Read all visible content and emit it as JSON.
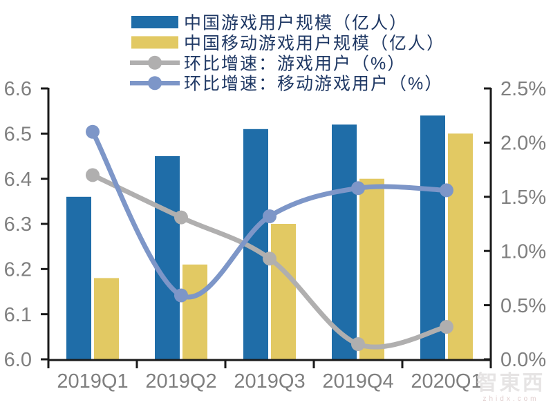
{
  "watermark": {
    "brand": "智東西",
    "domain": "zhidx.com"
  },
  "colors": {
    "background": "#FFFFFF",
    "axis_line": "#1A1A1A",
    "tick_text": "#7F7F7F",
    "legend_text": "#1F3864",
    "bar_blue": "#1F6DA8",
    "bar_yellow": "#E2C963",
    "line_gray": "#B0AFAF",
    "line_blue": "#7D96C8",
    "watermark_brand": "#E6E4E4",
    "watermark_domain": "#E0CDCD"
  },
  "chart_data": {
    "type": "bar",
    "subtype": "combo-bar-line-dual-axis",
    "title": "",
    "xlabel": "",
    "ylabel_left": "亿人",
    "ylabel_right": "%",
    "grid": false,
    "legend_position": "top",
    "categories": [
      "2019Q1",
      "2019Q2",
      "2019Q3",
      "2019Q4",
      "2020Q1"
    ],
    "series": [
      {
        "name": "中国游戏用户规模（亿人）",
        "type": "bar",
        "axis": "left",
        "color": "#1F6DA8",
        "values": [
          6.36,
          6.45,
          6.51,
          6.52,
          6.54
        ]
      },
      {
        "name": "中国移动游戏用户规模（亿人）",
        "type": "bar",
        "axis": "left",
        "color": "#E2C963",
        "values": [
          6.18,
          6.21,
          6.3,
          6.4,
          6.5
        ]
      },
      {
        "name": "环比增速：游戏用户（%）",
        "type": "line",
        "axis": "right",
        "color": "#B0AFAF",
        "values": [
          1.7,
          1.31,
          0.93,
          0.14,
          0.3
        ]
      },
      {
        "name": "环比增速：移动游戏用户（%）",
        "type": "line",
        "axis": "right",
        "color": "#7D96C8",
        "values": [
          2.1,
          0.59,
          1.32,
          1.58,
          1.56
        ]
      }
    ],
    "left_axis": {
      "min": 6.0,
      "max": 6.6,
      "ticks": [
        "6.0",
        "6.1",
        "6.2",
        "6.3",
        "6.4",
        "6.5",
        "6.6"
      ]
    },
    "right_axis": {
      "min": 0.0,
      "max": 2.5,
      "ticks": [
        "0.0%",
        "0.5%",
        "1.0%",
        "1.5%",
        "2.0%",
        "2.5%"
      ]
    }
  }
}
